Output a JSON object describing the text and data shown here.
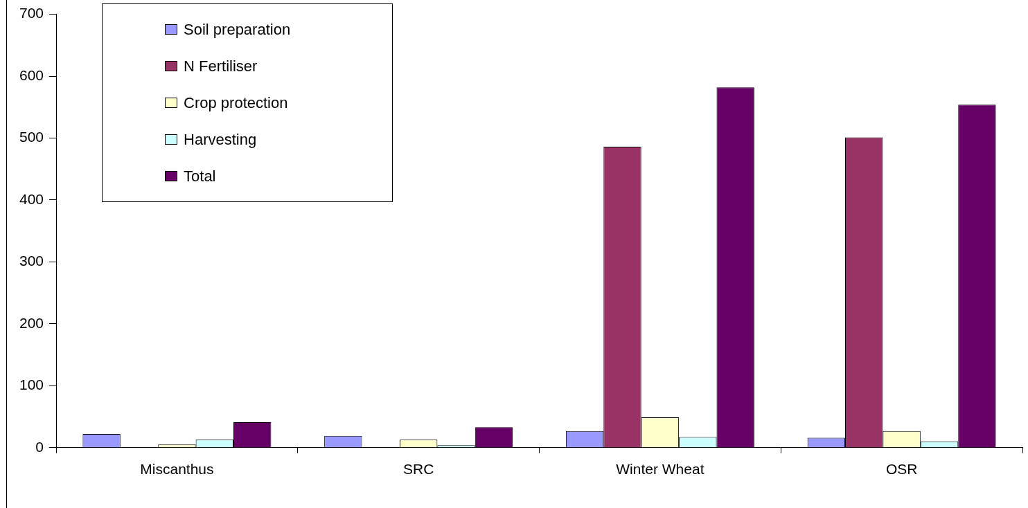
{
  "chart_data": {
    "type": "bar",
    "categories": [
      "Miscanthus",
      "SRC",
      "Winter Wheat",
      "OSR"
    ],
    "series": [
      {
        "name": "Soil preparation",
        "color": "#9999ff",
        "values": [
          22,
          19,
          27,
          16
        ]
      },
      {
        "name": "N Fertiliser",
        "color": "#993366",
        "values": [
          null,
          null,
          486,
          501
        ]
      },
      {
        "name": "Crop protection",
        "color": "#ffffcc",
        "values": [
          5,
          13,
          49,
          27
        ]
      },
      {
        "name": "Harvesting",
        "color": "#ccffff",
        "values": [
          13,
          4,
          17,
          10
        ]
      },
      {
        "name": "Total",
        "color": "#660066",
        "values": [
          41,
          33,
          582,
          554
        ]
      }
    ],
    "ylim": [
      0,
      700
    ],
    "yticks": [
      0,
      100,
      200,
      300,
      400,
      500,
      600,
      700
    ],
    "grid": false,
    "legend": "top left"
  }
}
